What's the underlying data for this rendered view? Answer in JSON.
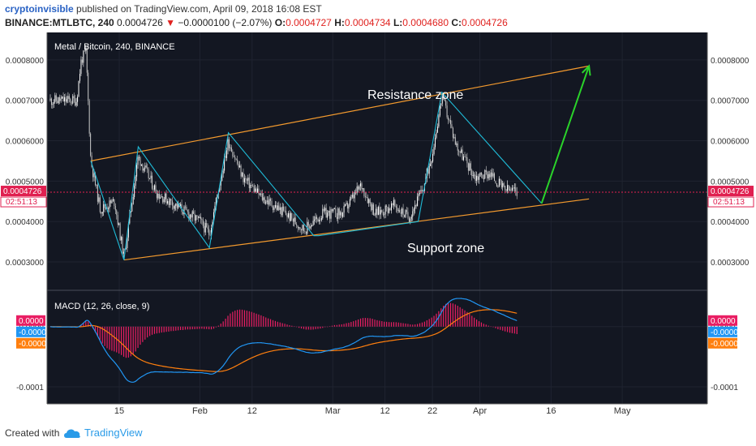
{
  "header": {
    "author": "cryptoinvisible",
    "published_text": " published on TradingView.com, April 09, 2018 16:08 EST",
    "symbol": "BINANCE:MTLBTC, 240",
    "last_price": "0.0004726",
    "change_arrow": "▼",
    "change": "−0.0000100 (−2.07%)",
    "o_label": "O:",
    "o_value": "0.0004727",
    "h_label": "H:",
    "h_value": "0.0004734",
    "l_label": "L:",
    "l_value": "0.0004680",
    "c_label": "C:",
    "c_value": "0.0004726"
  },
  "footer": {
    "created_text": "Created with",
    "brand": "TradingView"
  },
  "chart_data": [
    {
      "type": "candlestick",
      "title": "Metal / Bitcoin, 240, BINANCE",
      "y_ticks": [
        "0.0008000",
        "0.0007000",
        "0.0006000",
        "0.0005000",
        "0.0004000",
        "0.0003000"
      ],
      "ylim": [
        0.00027,
        0.00086
      ],
      "x_ticks": [
        "15",
        "Feb",
        "12",
        "Mar",
        "12",
        "22",
        "Apr",
        "16",
        "May"
      ],
      "x_dates": [
        "2018-01-15",
        "2018-02-01",
        "2018-02-12",
        "2018-03-01",
        "2018-03-12",
        "2018-03-22",
        "2018-04-01",
        "2018-04-16",
        "2018-05-01"
      ],
      "price_path": [
        {
          "date": "2018-01-06",
          "price": 0.0007
        },
        {
          "date": "2018-01-07",
          "price": 0.0008
        },
        {
          "date": "2018-01-08",
          "price": 0.00082
        },
        {
          "date": "2018-01-09",
          "price": 0.00055
        },
        {
          "date": "2018-01-11",
          "price": 0.00043
        },
        {
          "date": "2018-01-14",
          "price": 0.00045
        },
        {
          "date": "2018-01-16",
          "price": 0.00031
        },
        {
          "date": "2018-01-19",
          "price": 0.00056
        },
        {
          "date": "2018-01-23",
          "price": 0.00047
        },
        {
          "date": "2018-01-27",
          "price": 0.00044
        },
        {
          "date": "2018-02-01",
          "price": 0.0004
        },
        {
          "date": "2018-02-03",
          "price": 0.00037
        },
        {
          "date": "2018-02-07",
          "price": 0.0006
        },
        {
          "date": "2018-02-10",
          "price": 0.00051
        },
        {
          "date": "2018-02-14",
          "price": 0.00046
        },
        {
          "date": "2018-02-19",
          "price": 0.00042
        },
        {
          "date": "2018-02-23",
          "price": 0.00038
        },
        {
          "date": "2018-02-27",
          "price": 0.00042
        },
        {
          "date": "2018-03-03",
          "price": 0.00042
        },
        {
          "date": "2018-03-07",
          "price": 0.00049
        },
        {
          "date": "2018-03-10",
          "price": 0.00042
        },
        {
          "date": "2018-03-14",
          "price": 0.00044
        },
        {
          "date": "2018-03-17",
          "price": 0.00041
        },
        {
          "date": "2018-03-20",
          "price": 0.00048
        },
        {
          "date": "2018-03-22",
          "price": 0.00057
        },
        {
          "date": "2018-03-24",
          "price": 0.00071
        },
        {
          "date": "2018-03-27",
          "price": 0.00059
        },
        {
          "date": "2018-03-31",
          "price": 0.00051
        },
        {
          "date": "2018-04-03",
          "price": 0.00052
        },
        {
          "date": "2018-04-06",
          "price": 0.00048
        },
        {
          "date": "2018-04-09",
          "price": 0.000473
        }
      ],
      "channel_top": [
        {
          "date": "2018-01-09",
          "price": 0.00055
        },
        {
          "date": "2018-04-24",
          "price": 0.000785
        }
      ],
      "channel_bottom": [
        {
          "date": "2018-01-16",
          "price": 0.000305
        },
        {
          "date": "2018-04-24",
          "price": 0.000456
        }
      ],
      "zigzag": [
        {
          "date": "2018-01-09",
          "price": 0.00055
        },
        {
          "date": "2018-01-16",
          "price": 0.000305
        },
        {
          "date": "2018-01-19",
          "price": 0.000585
        },
        {
          "date": "2018-02-03",
          "price": 0.000335
        },
        {
          "date": "2018-02-07",
          "price": 0.00062
        },
        {
          "date": "2018-02-25",
          "price": 0.000365
        },
        {
          "date": "2018-02-26",
          "price": 0.000365
        },
        {
          "date": "2018-03-19",
          "price": 0.0004
        },
        {
          "date": "2018-03-24",
          "price": 0.00072
        },
        {
          "date": "2018-04-14",
          "price": 0.000445
        }
      ],
      "arrow": [
        {
          "date": "2018-04-14",
          "price": 0.000445
        },
        {
          "date": "2018-04-24",
          "price": 0.000785
        }
      ],
      "annotations": {
        "resistance": "Resistance zone",
        "support": "Support zone"
      },
      "price_label": "0.0004726",
      "countdown": "02:51:13",
      "colors": {
        "up": "#ffffff",
        "down": "#c8c8c8",
        "channel": "#f39a2e",
        "zigzag": "#1fbad6",
        "arrow": "#2ad32a",
        "price": "#e02050"
      }
    },
    {
      "type": "macd",
      "title": "MACD (12, 26, close, 9)",
      "y_ticks": [
        "0.0000",
        "-0.0001"
      ],
      "ylim": [
        -0.000123,
        5.5e-05
      ],
      "value_labels": [
        "0.0000",
        "-0.0000",
        "-0.0000"
      ],
      "colors": {
        "macd": "#2196f3",
        "signal": "#ff7f0e",
        "histogram": "#e91e63"
      }
    }
  ]
}
